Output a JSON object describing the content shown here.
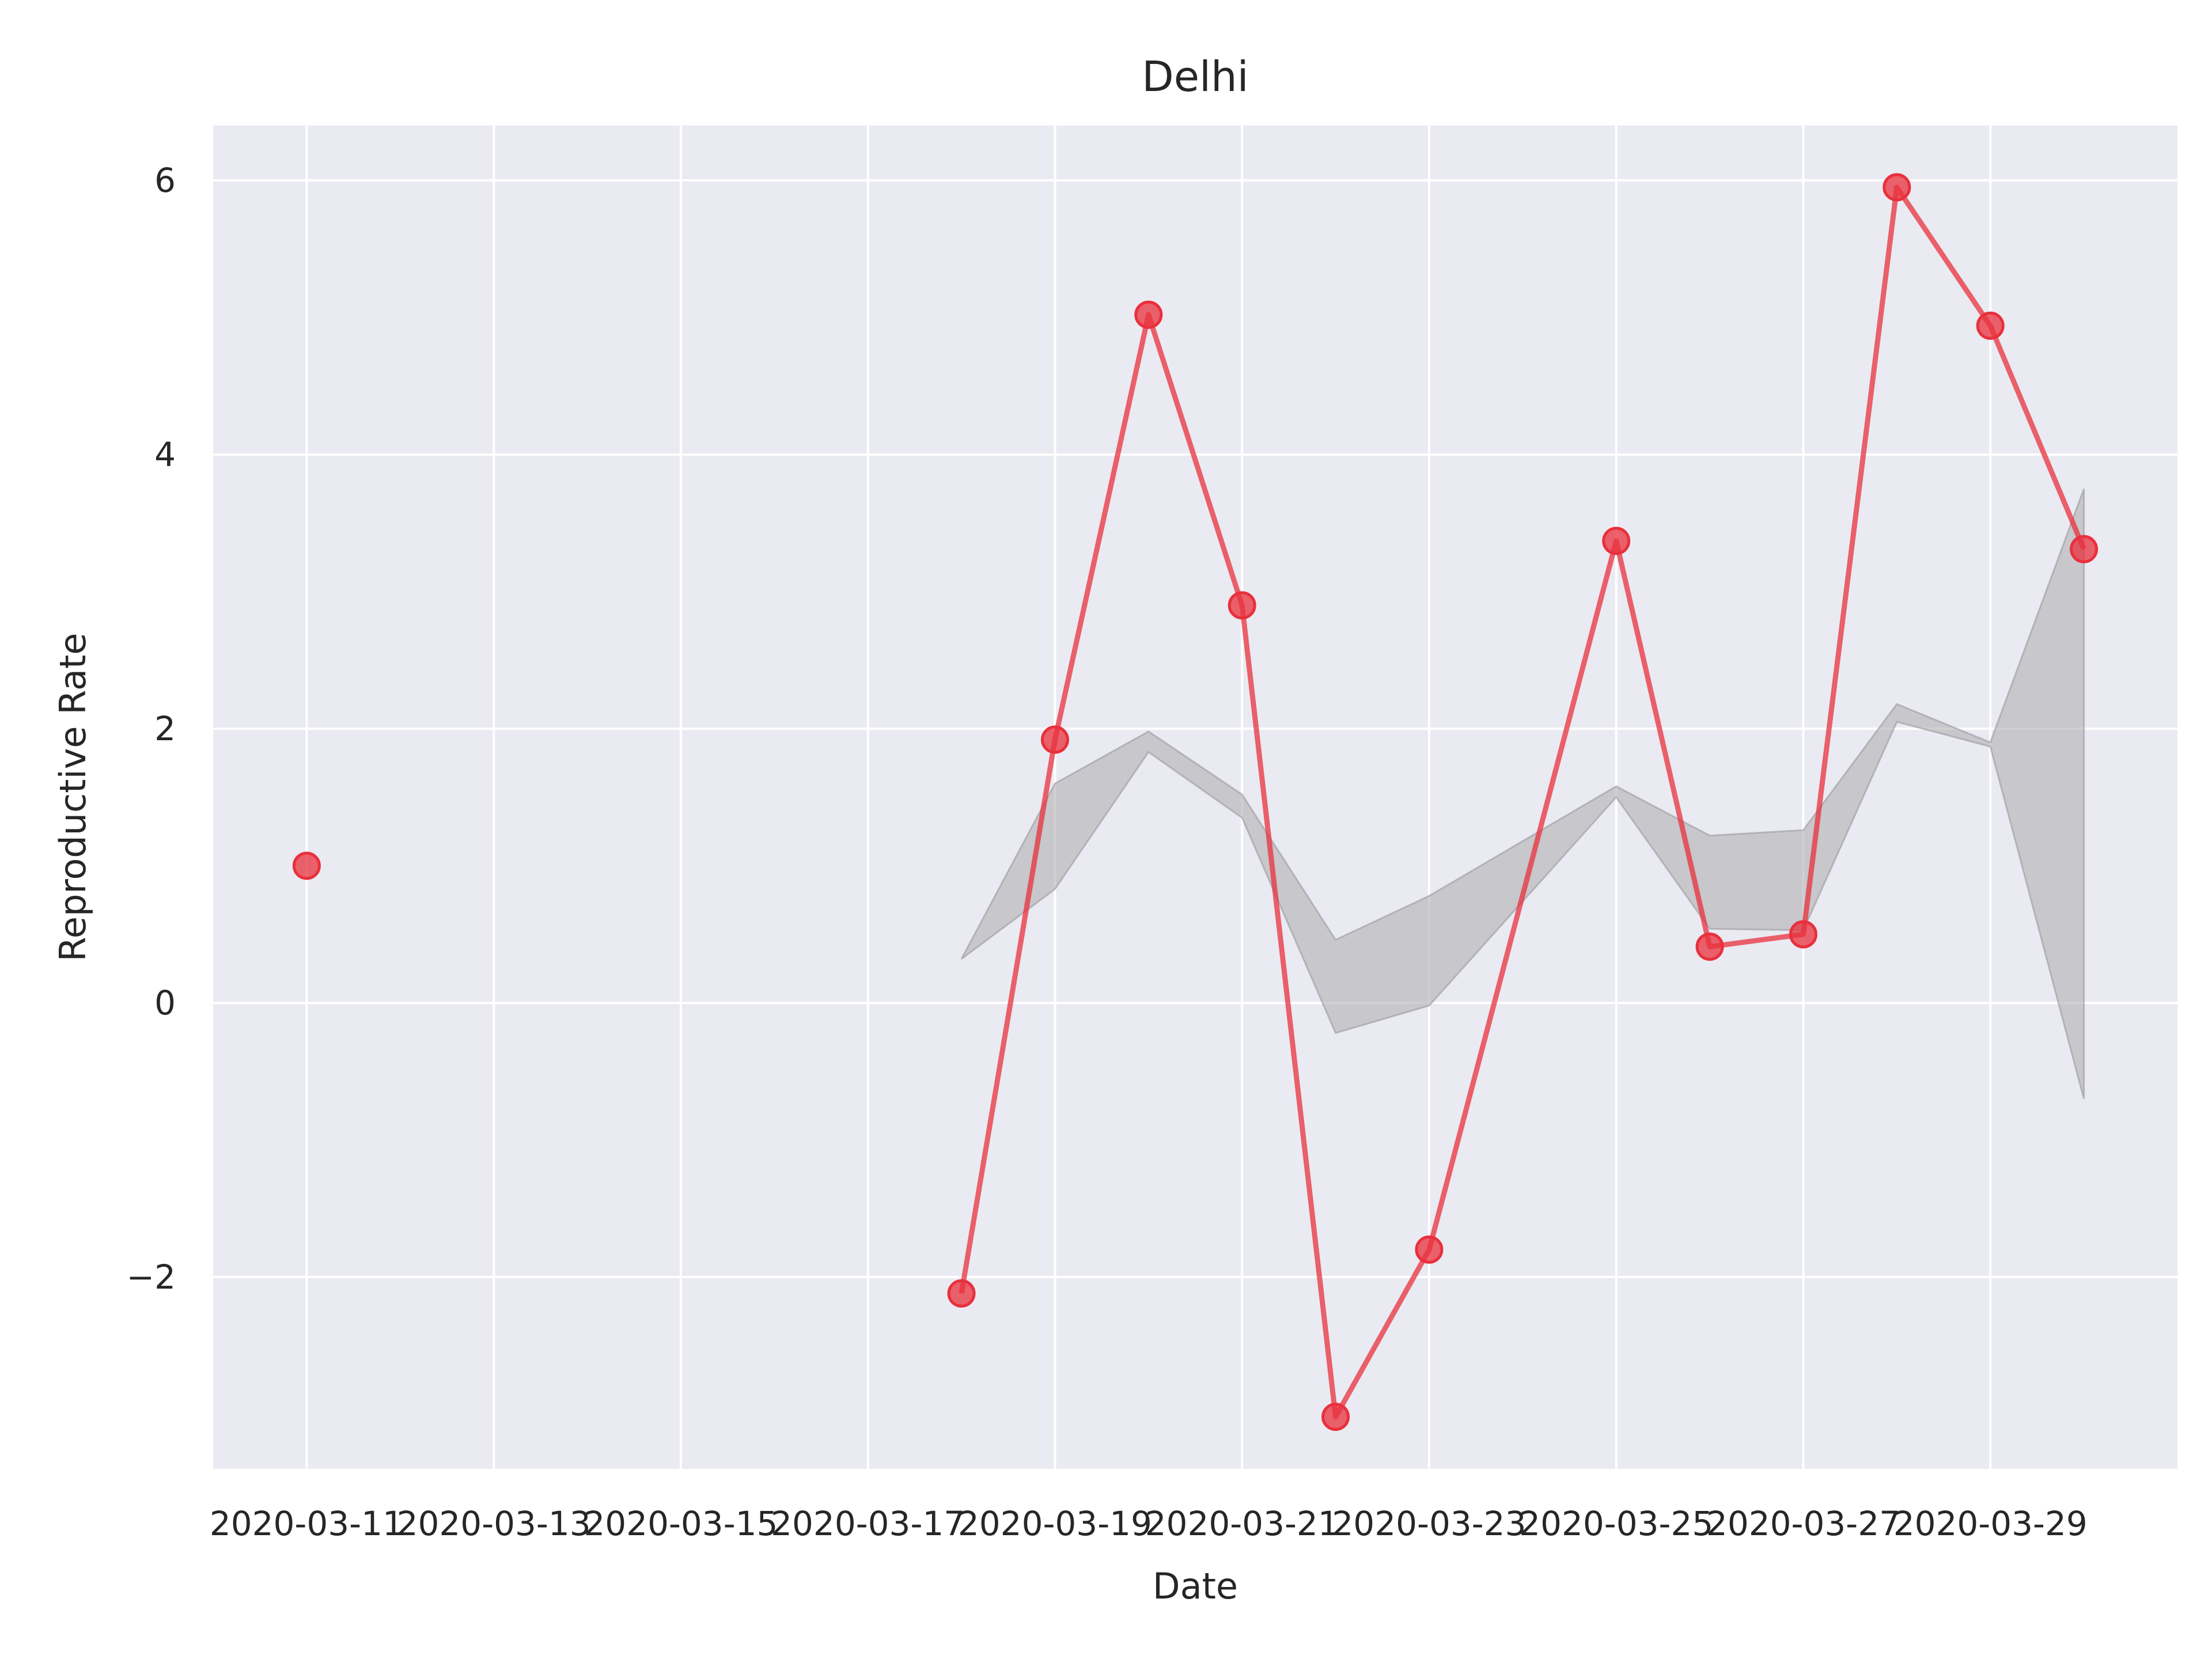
{
  "chart_data": {
    "type": "line",
    "title": "Delhi",
    "xlabel": "Date",
    "ylabel": "Reproductive Rate",
    "x_start": "2020-03-11",
    "x_ticks": [
      "2020-03-11",
      "2020-03-13",
      "2020-03-15",
      "2020-03-17",
      "2020-03-19",
      "2020-03-21",
      "2020-03-23",
      "2020-03-25",
      "2020-03-27",
      "2020-03-29"
    ],
    "y_ticks": [
      -2,
      0,
      2,
      4,
      6
    ],
    "y_tick_labels": [
      "−2",
      "0",
      "2",
      "4",
      "6"
    ],
    "xlim": [
      "2020-03-10",
      "2020-03-31"
    ],
    "ylim": [
      -3.4,
      6.4
    ],
    "grid": true,
    "series": [
      {
        "color": "#e8303c",
        "points": [
          {
            "date": "2020-03-11",
            "value": 1.0
          },
          {
            "date": "2020-03-18",
            "value": -2.12
          },
          {
            "date": "2020-03-19",
            "value": 1.92
          },
          {
            "date": "2020-03-20",
            "value": 5.02
          },
          {
            "date": "2020-03-21",
            "value": 2.9
          },
          {
            "date": "2020-03-22",
            "value": -3.02
          },
          {
            "date": "2020-03-23",
            "value": -1.8
          },
          {
            "date": "2020-03-25",
            "value": 3.37
          },
          {
            "date": "2020-03-26",
            "value": 0.41
          },
          {
            "date": "2020-03-27",
            "value": 0.5
          },
          {
            "date": "2020-03-28",
            "value": 5.95
          },
          {
            "date": "2020-03-29",
            "value": 4.94
          },
          {
            "date": "2020-03-30",
            "value": 3.31
          }
        ]
      }
    ],
    "band": {
      "color": "#a9a9ad",
      "points": [
        {
          "date": "2020-03-18",
          "low": 0.32,
          "high": 0.32
        },
        {
          "date": "2020-03-19",
          "low": 0.83,
          "high": 1.6
        },
        {
          "date": "2020-03-20",
          "low": 1.83,
          "high": 1.98
        },
        {
          "date": "2020-03-21",
          "low": 1.35,
          "high": 1.52
        },
        {
          "date": "2020-03-22",
          "low": -0.22,
          "high": 0.46
        },
        {
          "date": "2020-03-23",
          "low": -0.02,
          "high": 0.78
        },
        {
          "date": "2020-03-25",
          "low": 1.5,
          "high": 1.58
        },
        {
          "date": "2020-03-26",
          "low": 0.54,
          "high": 1.22
        },
        {
          "date": "2020-03-27",
          "low": 0.53,
          "high": 1.26
        },
        {
          "date": "2020-03-28",
          "low": 2.05,
          "high": 2.18
        },
        {
          "date": "2020-03-29",
          "low": 1.87,
          "high": 1.9
        },
        {
          "date": "2020-03-30",
          "low": -0.7,
          "high": 3.75
        }
      ]
    }
  }
}
